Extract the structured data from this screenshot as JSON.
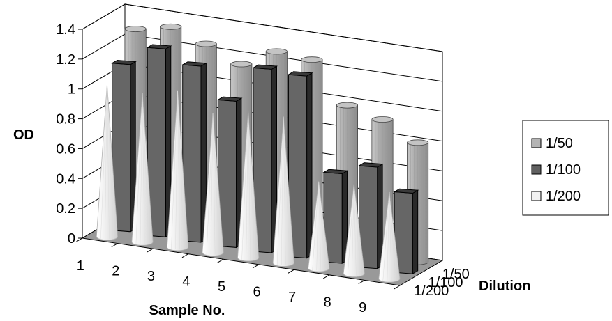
{
  "chart_data": {
    "type": "bar",
    "variant": "3d-column",
    "title": "",
    "ylabel": "OD",
    "xlabel": "Sample No.",
    "zlabel": "Dilution",
    "ylim": [
      0,
      1.4
    ],
    "yticks": [
      "0",
      "0.2",
      "0.4",
      "0.6",
      "0.8",
      "1",
      "1.2",
      "1.4"
    ],
    "categories": [
      "1",
      "2",
      "3",
      "4",
      "5",
      "6",
      "7",
      "8",
      "9"
    ],
    "depth_labels": [
      "1/50",
      "1/100",
      "1/200"
    ],
    "grid": true,
    "legend": {
      "position": "right"
    },
    "series": [
      {
        "name": "1/50",
        "shape": "cylinder",
        "color": "#b4b4b4",
        "values": [
          1.28,
          1.33,
          1.25,
          1.15,
          1.27,
          1.25,
          0.98,
          0.92,
          0.8
        ]
      },
      {
        "name": "1/100",
        "shape": "box",
        "color": "#606060",
        "values": [
          1.12,
          1.26,
          1.18,
          0.98,
          1.23,
          1.22,
          0.6,
          0.68,
          0.54
        ]
      },
      {
        "name": "1/200",
        "shape": "cone",
        "color": "#f2f2f2",
        "values": [
          1.02,
          1.0,
          1.05,
          0.93,
          0.98,
          0.98,
          0.58,
          0.6,
          0.58
        ]
      }
    ]
  }
}
